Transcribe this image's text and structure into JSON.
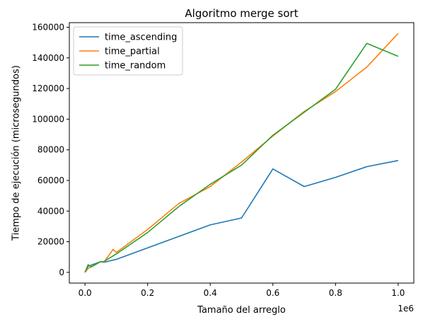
{
  "chart_data": {
    "type": "line",
    "title": "Algoritmo merge sort",
    "xlabel": "Tamaño del arreglo",
    "ylabel": "Tiempo de ejecución (microsegundos)",
    "x_scale_label": "1e6",
    "xlim": [
      -50000,
      1050000
    ],
    "ylim": [
      -7000,
      163000
    ],
    "x_ticks": [
      0,
      200000,
      400000,
      600000,
      800000,
      1000000
    ],
    "x_tick_labels": [
      "0.0",
      "0.2",
      "0.4",
      "0.6",
      "0.8",
      "1.0"
    ],
    "y_ticks": [
      0,
      20000,
      40000,
      60000,
      80000,
      100000,
      120000,
      140000,
      160000
    ],
    "y_tick_labels": [
      "0",
      "20000",
      "40000",
      "60000",
      "80000",
      "100000",
      "120000",
      "140000",
      "160000"
    ],
    "grid": false,
    "legend_position": "top-left",
    "series": [
      {
        "name": "time_ascending",
        "color": "#1f77b4",
        "x": [
          0,
          10000,
          50000,
          60000,
          100000,
          200000,
          300000,
          400000,
          500000,
          600000,
          700000,
          800000,
          900000,
          1000000
        ],
        "y": [
          0,
          4000,
          7000,
          6500,
          8500,
          16000,
          23500,
          31000,
          35500,
          67500,
          56000,
          62000,
          69000,
          73000
        ]
      },
      {
        "name": "time_partial",
        "color": "#ff7f0e",
        "x": [
          0,
          10000,
          50000,
          60000,
          90000,
          100000,
          200000,
          300000,
          400000,
          500000,
          600000,
          700000,
          800000,
          900000,
          1000000
        ],
        "y": [
          0,
          2500,
          7000,
          6500,
          15000,
          13000,
          28000,
          45000,
          56000,
          72000,
          89000,
          105000,
          118000,
          134000,
          156000
        ]
      },
      {
        "name": "time_random",
        "color": "#2ca02c",
        "x": [
          0,
          10000,
          20000,
          50000,
          60000,
          100000,
          200000,
          300000,
          400000,
          500000,
          600000,
          700000,
          800000,
          900000,
          1000000
        ],
        "y": [
          0,
          5000,
          3500,
          7000,
          7000,
          12000,
          26000,
          43000,
          57500,
          70000,
          89500,
          104500,
          119500,
          149500,
          141000
        ]
      }
    ]
  }
}
